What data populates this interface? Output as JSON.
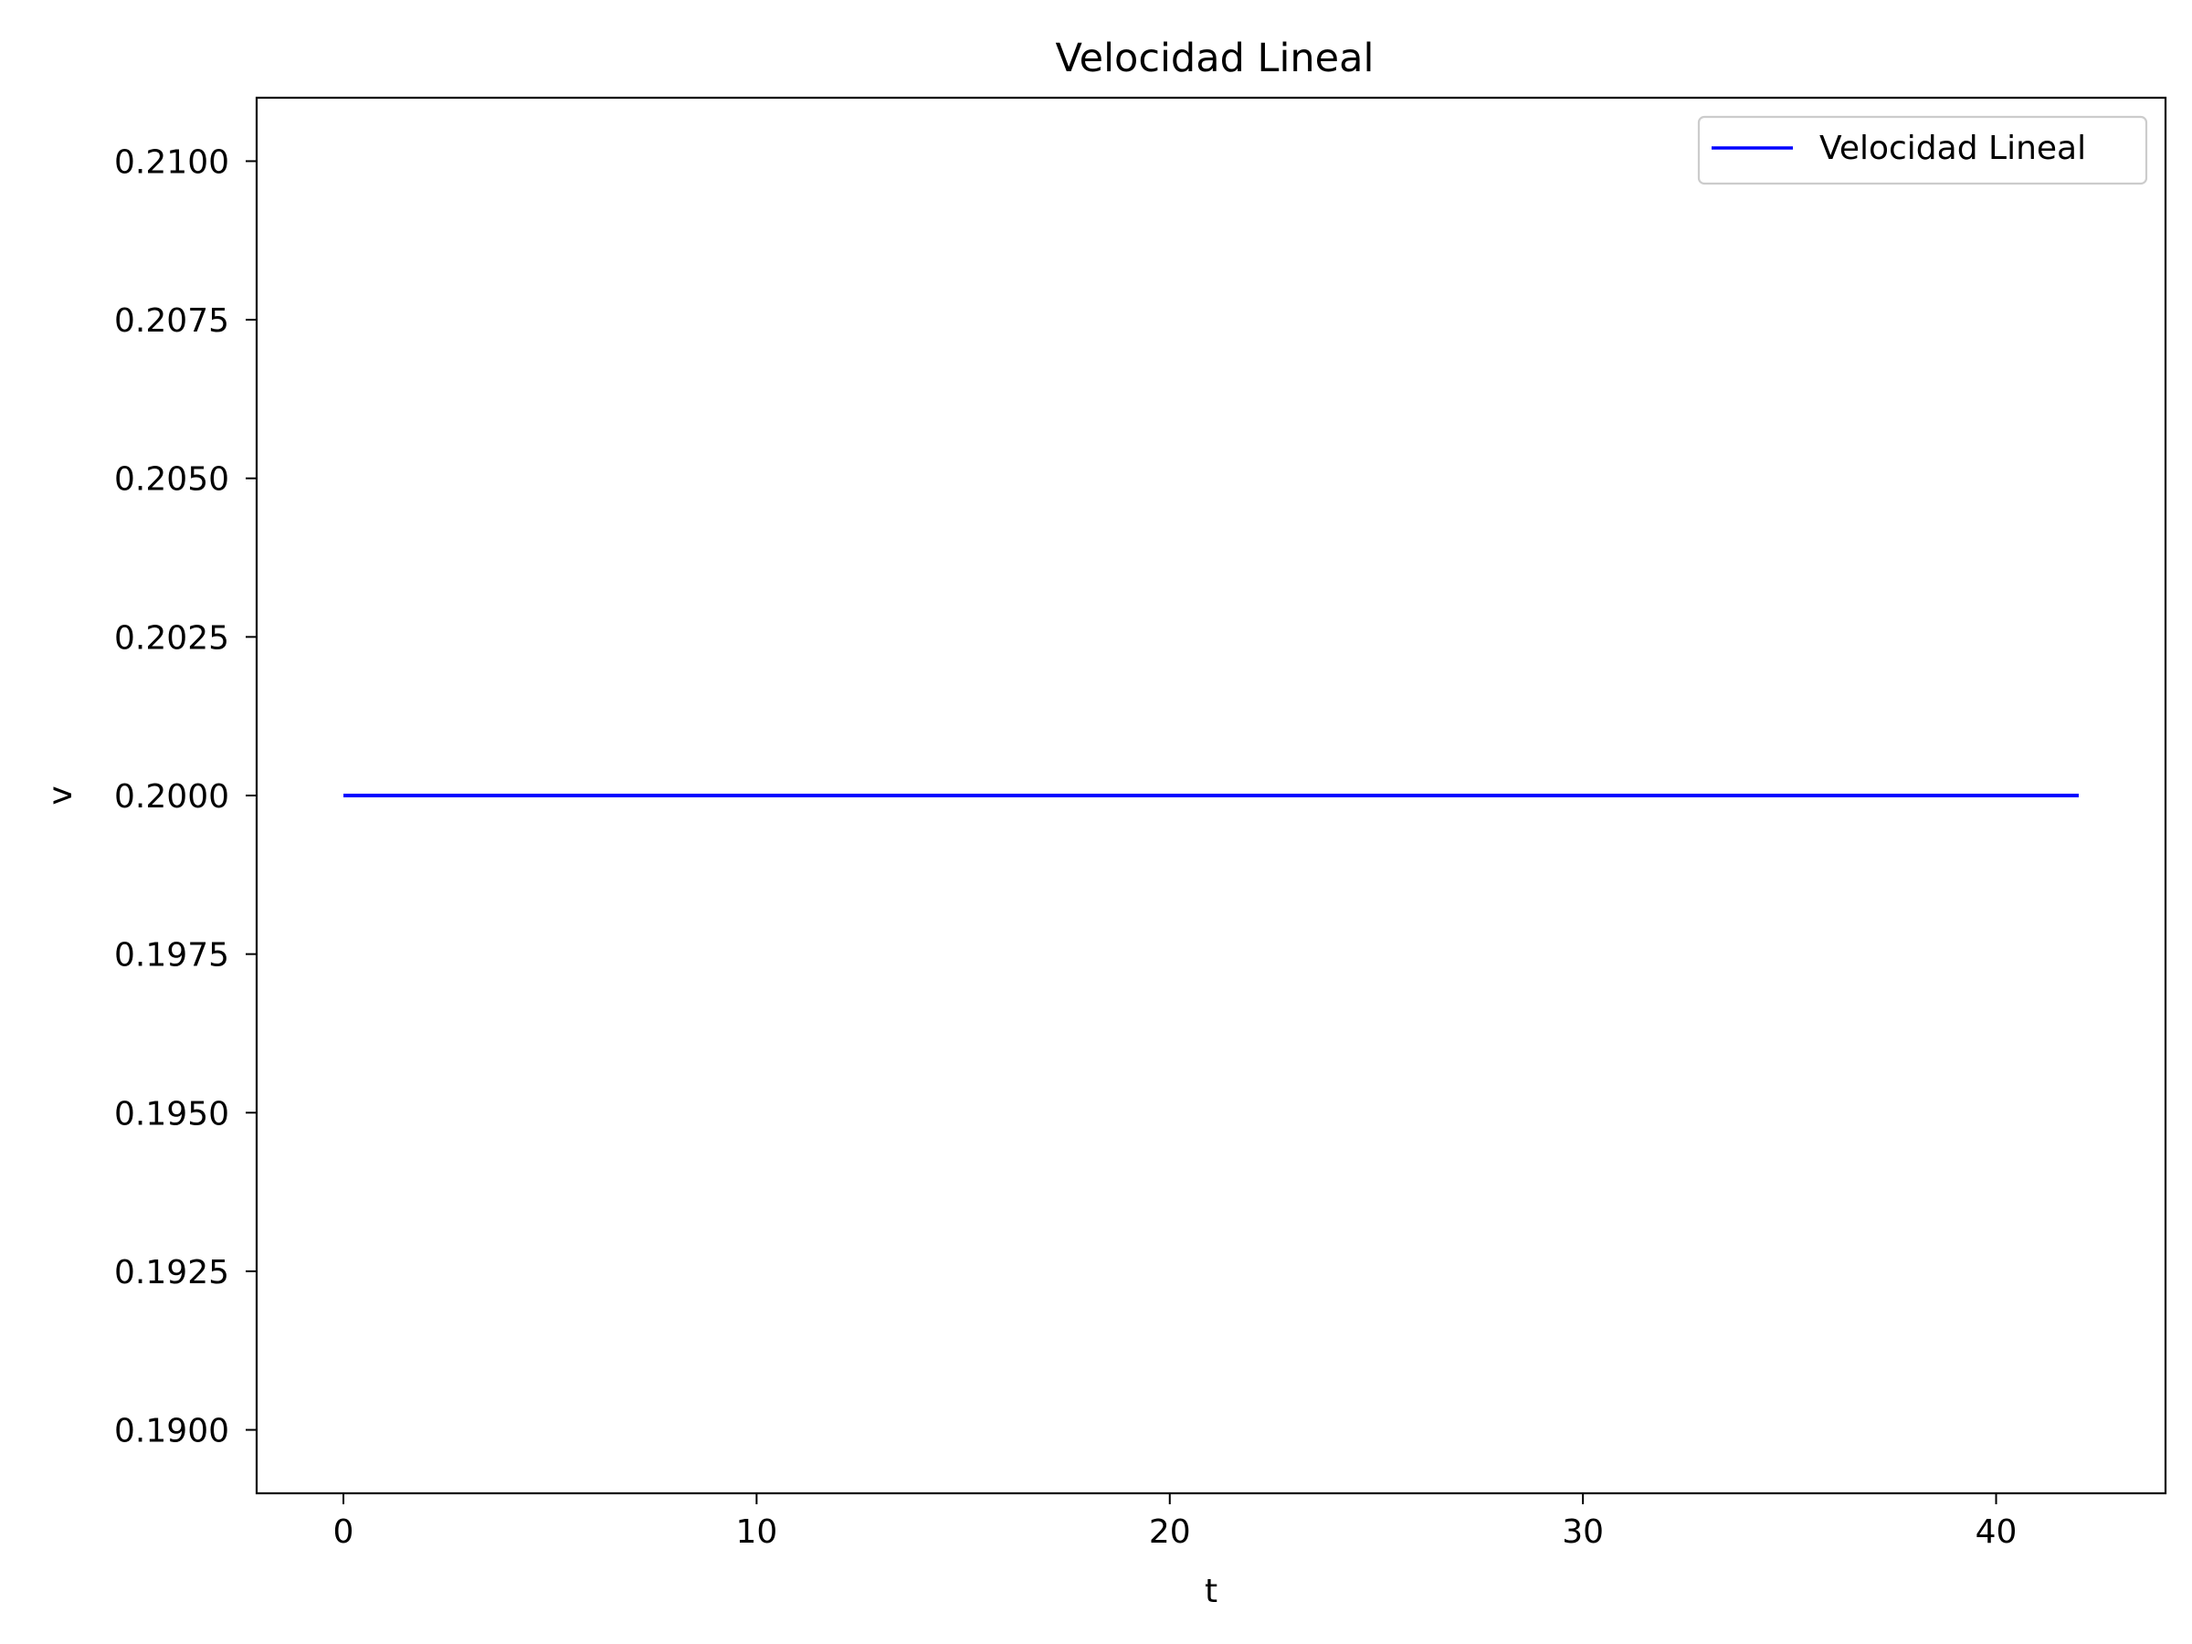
{
  "chart_data": {
    "type": "line",
    "title": "Velocidad Lineal",
    "xlabel": "t",
    "ylabel": "v",
    "xlim": [
      -2.1,
      44.1
    ],
    "ylim": [
      0.189,
      0.211
    ],
    "x_ticks": [
      0,
      10,
      20,
      30,
      40
    ],
    "x_tick_labels": [
      "0",
      "10",
      "20",
      "30",
      "40"
    ],
    "y_ticks": [
      0.19,
      0.1925,
      0.195,
      0.1975,
      0.2,
      0.2025,
      0.205,
      0.2075,
      0.21
    ],
    "y_tick_labels": [
      "0.1900",
      "0.1925",
      "0.1950",
      "0.1975",
      "0.2000",
      "0.2025",
      "0.2050",
      "0.2075",
      "0.2100"
    ],
    "grid": false,
    "legend": {
      "position": "top-right",
      "entries": [
        "Velocidad Lineal"
      ]
    },
    "series": [
      {
        "name": "Velocidad Lineal",
        "color": "#0000ff",
        "x": [
          0,
          42
        ],
        "y": [
          0.2,
          0.2
        ]
      }
    ]
  }
}
